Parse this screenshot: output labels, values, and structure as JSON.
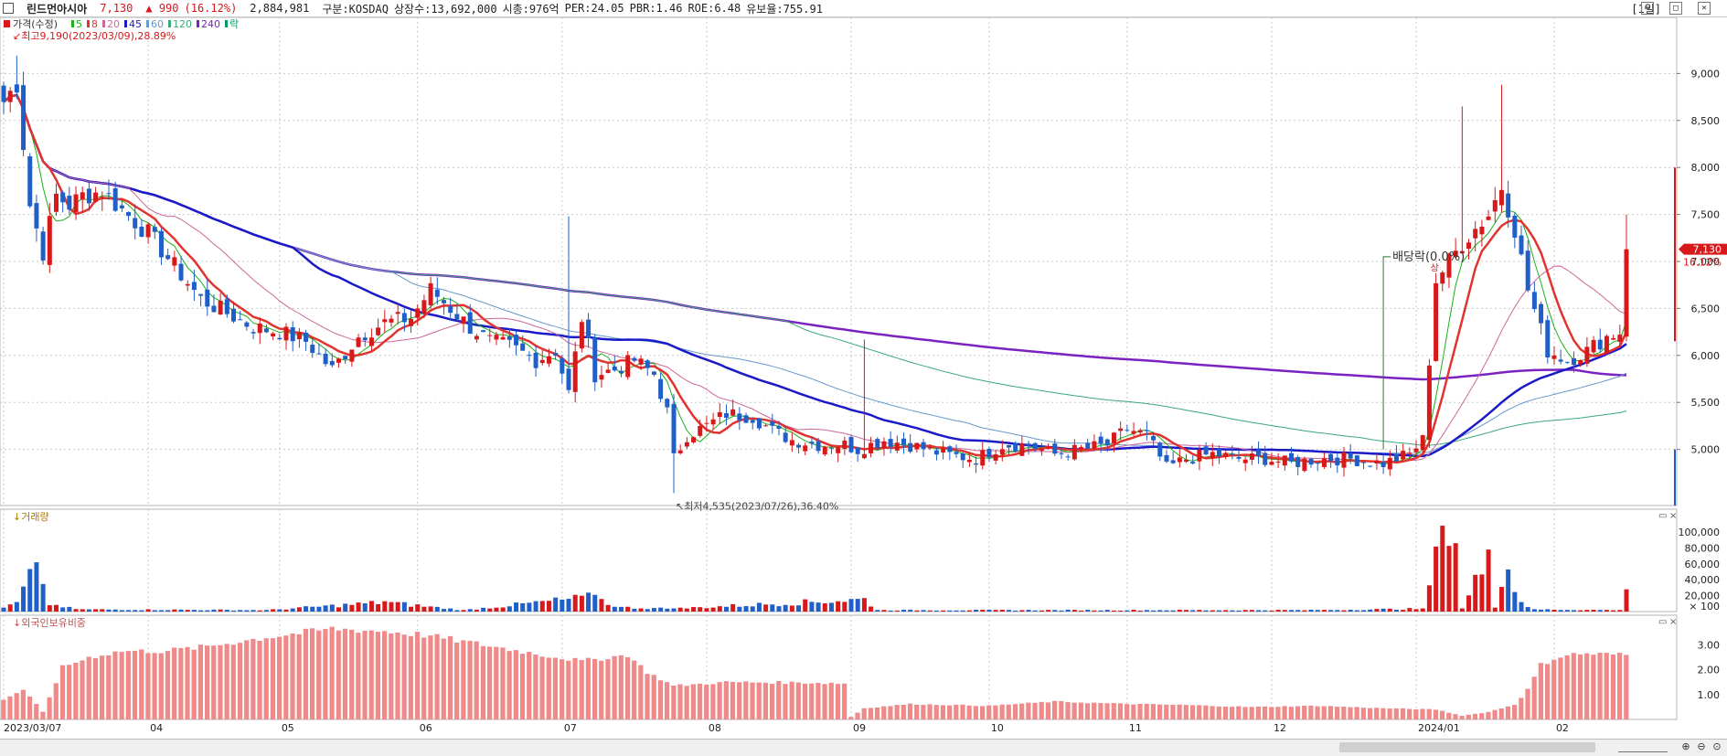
{
  "header": {
    "stock_name": "린드먼아시아",
    "price": "7,130",
    "change": "▲ 990",
    "change_pct": "(16.12%)",
    "volume": "2,884,981",
    "market": "구분:KOSDAQ",
    "shares": "상장수:13,692,000",
    "mcap": "시총:976억",
    "per": "PER:24.05",
    "pbr": "PBR:1.46",
    "roe": "ROE:6.48",
    "float": "유보율:755.91",
    "period": "[1일]"
  },
  "colors": {
    "up": "#d7191c",
    "down": "#1f5fc7",
    "ma5": "#19b019",
    "ma8": "#e0342f",
    "ma20": "#cc6699",
    "ma45": "#1a1ac8",
    "ma60": "#6699cc",
    "ma120": "#3aa87a",
    "ma240": "#7a22c2",
    "foreign": "#f08a8a"
  },
  "icons": [
    "checkbox-icon",
    "minimize-icon",
    "maximize-icon",
    "close-icon",
    "zoom-in-icon",
    "zoom-out-icon",
    "zoom-reset-icon"
  ],
  "chart_data": {
    "type": "candlestick",
    "price_legend": {
      "title": "가격(수정)",
      "items": [
        {
          "label": "5",
          "color": "#19b019"
        },
        {
          "label": "8",
          "color": "#e0342f"
        },
        {
          "label": "20",
          "color": "#cc6699"
        },
        {
          "label": "45",
          "color": "#1a1ac8"
        },
        {
          "label": "60",
          "color": "#6699cc"
        },
        {
          "label": "120",
          "color": "#3aa87a"
        },
        {
          "label": "240",
          "color": "#7a22c2"
        },
        {
          "label": "락",
          "color": "#009966"
        }
      ]
    },
    "annotations": {
      "high": "최고9,190(2023/03/09),28.89%",
      "low": "최저4,535(2023/07/26),36.40%",
      "dividend": "배당락(0.0%)",
      "limit_up": "상",
      "last_price": "7,130",
      "last_pct": "16.12%"
    },
    "price_axis": {
      "min": 4500,
      "max": 9500,
      "ticks": [
        "9,000",
        "8,500",
        "8,000",
        "7,500",
        "7,000",
        "6,500",
        "6,000",
        "5,500",
        "5,000"
      ]
    },
    "x_labels": [
      "2023/03/07",
      "04",
      "05",
      "06",
      "07",
      "08",
      "09",
      "10",
      "11",
      "12",
      "2024/01",
      "02"
    ],
    "x_label_idx": [
      0,
      22,
      42,
      63,
      85,
      107,
      129,
      150,
      171,
      193,
      215,
      236
    ],
    "volume_panel": {
      "title": "거래량",
      "ticks": [
        "100,000",
        "80,000",
        "60,000",
        "40,000",
        "20,000",
        "× 100"
      ],
      "max": 115000
    },
    "foreign_panel": {
      "title": "외국인보유비중",
      "ticks": [
        "3.00",
        "2.00",
        "1.00"
      ],
      "max": 3.9
    },
    "keypoints": [
      [
        0,
        8700
      ],
      [
        2,
        8900
      ],
      [
        4,
        7600
      ],
      [
        6,
        7100
      ],
      [
        8,
        7700
      ],
      [
        10,
        7600
      ],
      [
        12,
        7700
      ],
      [
        15,
        7750
      ],
      [
        18,
        7550
      ],
      [
        22,
        7300
      ],
      [
        26,
        6950
      ],
      [
        30,
        6600
      ],
      [
        34,
        6450
      ],
      [
        38,
        6300
      ],
      [
        42,
        6250
      ],
      [
        46,
        6150
      ],
      [
        50,
        5850
      ],
      [
        54,
        6200
      ],
      [
        58,
        6350
      ],
      [
        62,
        6400
      ],
      [
        65,
        6700
      ],
      [
        68,
        6500
      ],
      [
        71,
        6300
      ],
      [
        74,
        6150
      ],
      [
        77,
        6100
      ],
      [
        81,
        5950
      ],
      [
        84,
        6050
      ],
      [
        86,
        5600
      ],
      [
        88,
        6400
      ],
      [
        90,
        5800
      ],
      [
        93,
        5850
      ],
      [
        96,
        5950
      ],
      [
        99,
        5800
      ],
      [
        101,
        5400
      ],
      [
        102,
        4900
      ],
      [
        104,
        5150
      ],
      [
        107,
        5250
      ],
      [
        110,
        5380
      ],
      [
        114,
        5350
      ],
      [
        117,
        5200
      ],
      [
        120,
        5100
      ],
      [
        124,
        5050
      ],
      [
        128,
        5050
      ],
      [
        130,
        5000
      ],
      [
        134,
        5100
      ],
      [
        138,
        5050
      ],
      [
        143,
        4950
      ],
      [
        148,
        4900
      ],
      [
        152,
        5050
      ],
      [
        156,
        5050
      ],
      [
        160,
        4950
      ],
      [
        164,
        5000
      ],
      [
        168,
        5050
      ],
      [
        171,
        5220
      ],
      [
        174,
        5150
      ],
      [
        177,
        4800
      ],
      [
        180,
        4900
      ],
      [
        184,
        4950
      ],
      [
        188,
        4900
      ],
      [
        192,
        4900
      ],
      [
        196,
        4850
      ],
      [
        200,
        4900
      ],
      [
        205,
        4900
      ],
      [
        210,
        4850
      ],
      [
        214,
        4950
      ],
      [
        216,
        5100
      ],
      [
        218,
        6800
      ],
      [
        222,
        7200
      ],
      [
        226,
        7500
      ],
      [
        228,
        7800
      ],
      [
        230,
        7350
      ],
      [
        232,
        6700
      ],
      [
        235,
        6050
      ],
      [
        238,
        5950
      ],
      [
        241,
        6050
      ],
      [
        244,
        6200
      ],
      [
        246,
        6250
      ],
      [
        247,
        7130
      ]
    ],
    "volume_keypoints": [
      [
        0,
        5000
      ],
      [
        2,
        12000
      ],
      [
        5,
        62000
      ],
      [
        7,
        8000
      ],
      [
        12,
        3000
      ],
      [
        40,
        2000
      ],
      [
        58,
        13000
      ],
      [
        70,
        2000
      ],
      [
        90,
        21000
      ],
      [
        93,
        6000
      ],
      [
        102,
        4000
      ],
      [
        131,
        17000
      ],
      [
        133,
        2000
      ],
      [
        200,
        2000
      ],
      [
        216,
        4000
      ],
      [
        217,
        33000
      ],
      [
        219,
        108000
      ],
      [
        221,
        86000
      ],
      [
        222,
        4000
      ],
      [
        226,
        78000
      ],
      [
        227,
        5000
      ],
      [
        228,
        31000
      ],
      [
        229,
        53000
      ],
      [
        231,
        12000
      ],
      [
        233,
        3000
      ],
      [
        246,
        2000
      ],
      [
        247,
        28000
      ]
    ],
    "foreign_keypoints": [
      [
        0,
        0.8
      ],
      [
        3,
        1.2
      ],
      [
        6,
        0.3
      ],
      [
        9,
        2.1
      ],
      [
        13,
        2.5
      ],
      [
        18,
        2.75
      ],
      [
        24,
        2.75
      ],
      [
        30,
        2.9
      ],
      [
        40,
        3.3
      ],
      [
        50,
        3.65
      ],
      [
        58,
        3.55
      ],
      [
        64,
        3.4
      ],
      [
        72,
        3.05
      ],
      [
        82,
        2.6
      ],
      [
        88,
        2.35
      ],
      [
        95,
        2.6
      ],
      [
        98,
        1.9
      ],
      [
        102,
        1.35
      ],
      [
        110,
        1.5
      ],
      [
        123,
        1.48
      ],
      [
        128,
        1.45
      ],
      [
        129,
        0.1
      ],
      [
        131,
        0.45
      ],
      [
        138,
        0.62
      ],
      [
        150,
        0.55
      ],
      [
        160,
        0.72
      ],
      [
        170,
        0.63
      ],
      [
        180,
        0.58
      ],
      [
        190,
        0.5
      ],
      [
        200,
        0.55
      ],
      [
        210,
        0.45
      ],
      [
        218,
        0.4
      ],
      [
        222,
        0.15
      ],
      [
        226,
        0.3
      ],
      [
        230,
        0.6
      ],
      [
        232,
        1.2
      ],
      [
        234,
        2.2
      ],
      [
        237,
        2.55
      ],
      [
        240,
        2.65
      ],
      [
        247,
        2.6
      ]
    ]
  }
}
